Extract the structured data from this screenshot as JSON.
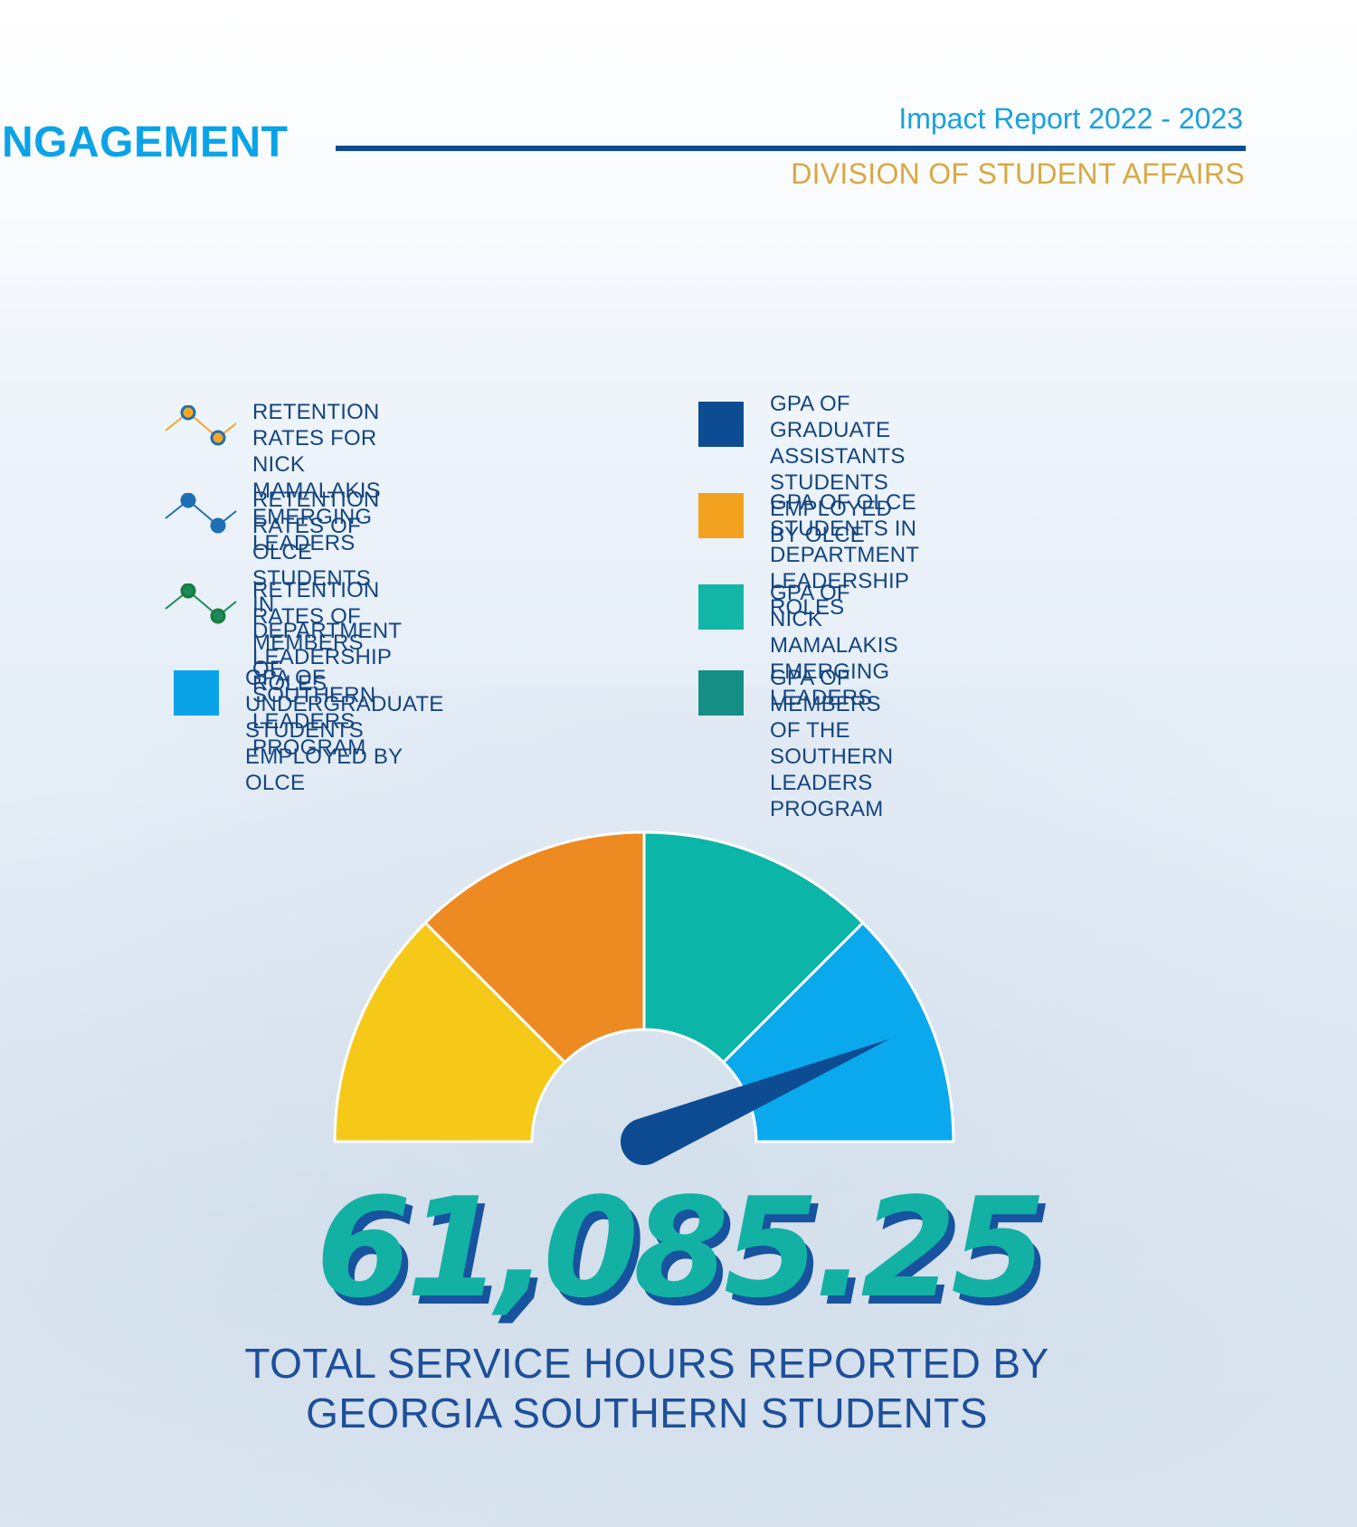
{
  "header": {
    "section_title": "NGAGEMENT",
    "report_title": "Impact Report 2022 - 2023",
    "division": "DIVISION OF STUDENT AFFAIRS"
  },
  "legend": {
    "items": [
      {
        "label": "RETENTION RATES FOR NICK\nMAMALAKIS EMERGING LEADERS",
        "icon": "line-icon",
        "color": "#f5a623",
        "marker_color": "#1f6fb5"
      },
      {
        "label": "RETENTION RATES OF OLCE STUDENTS\nIN DEPARTMENT LEADERSHIP ROLES",
        "icon": "line-icon",
        "color": "#1f6fb5",
        "marker_color": "#1f6fb5"
      },
      {
        "label": "RETENTION RATES OF MEMBERS OF\nSOUTHERN LEADERS PROGRAM",
        "icon": "line-icon",
        "color": "#1b8a5a",
        "marker_color": "#1b7a3e"
      },
      {
        "label": "GPA OF UNDERGRADUATE\nSTUDENTS EMPLOYED BY OLCE",
        "icon": "square-icon",
        "color": "#0aa3e8"
      },
      {
        "label": "GPA OF GRADUATE ASSISTANTS\nSTUDENTS EMPLOYED BY OLCE",
        "icon": "square-icon",
        "color": "#0d4c92"
      },
      {
        "label": "GPA OF OLCE STUDENTS IN\nDEPARTMENT LEADERSHIP ROLES",
        "icon": "square-icon",
        "color": "#f3a21f"
      },
      {
        "label": "GPA OF NICK MAMALAKIS\nEMERGING LEADERS",
        "icon": "square-icon",
        "color": "#12b6a6"
      },
      {
        "label": "GPA OF MEMBERS OF THE\nSOUTHERN LEADERS PROGRAM",
        "icon": "square-icon",
        "color": "#158f85"
      }
    ]
  },
  "gauge": {
    "segments": [
      {
        "name": "yellow-segment",
        "color": "#f6c918"
      },
      {
        "name": "orange-segment",
        "color": "#ee8a22"
      },
      {
        "name": "teal-segment",
        "color": "#0bb5a8"
      },
      {
        "name": "blue-segment",
        "color": "#0aa9ee"
      }
    ],
    "needle_color": "#0d4c92",
    "needle_fraction": 0.88
  },
  "stat": {
    "value": "61,085.25",
    "caption": "TOTAL SERVICE HOURS REPORTED BY\nGEORGIA SOUTHERN STUDENTS"
  }
}
